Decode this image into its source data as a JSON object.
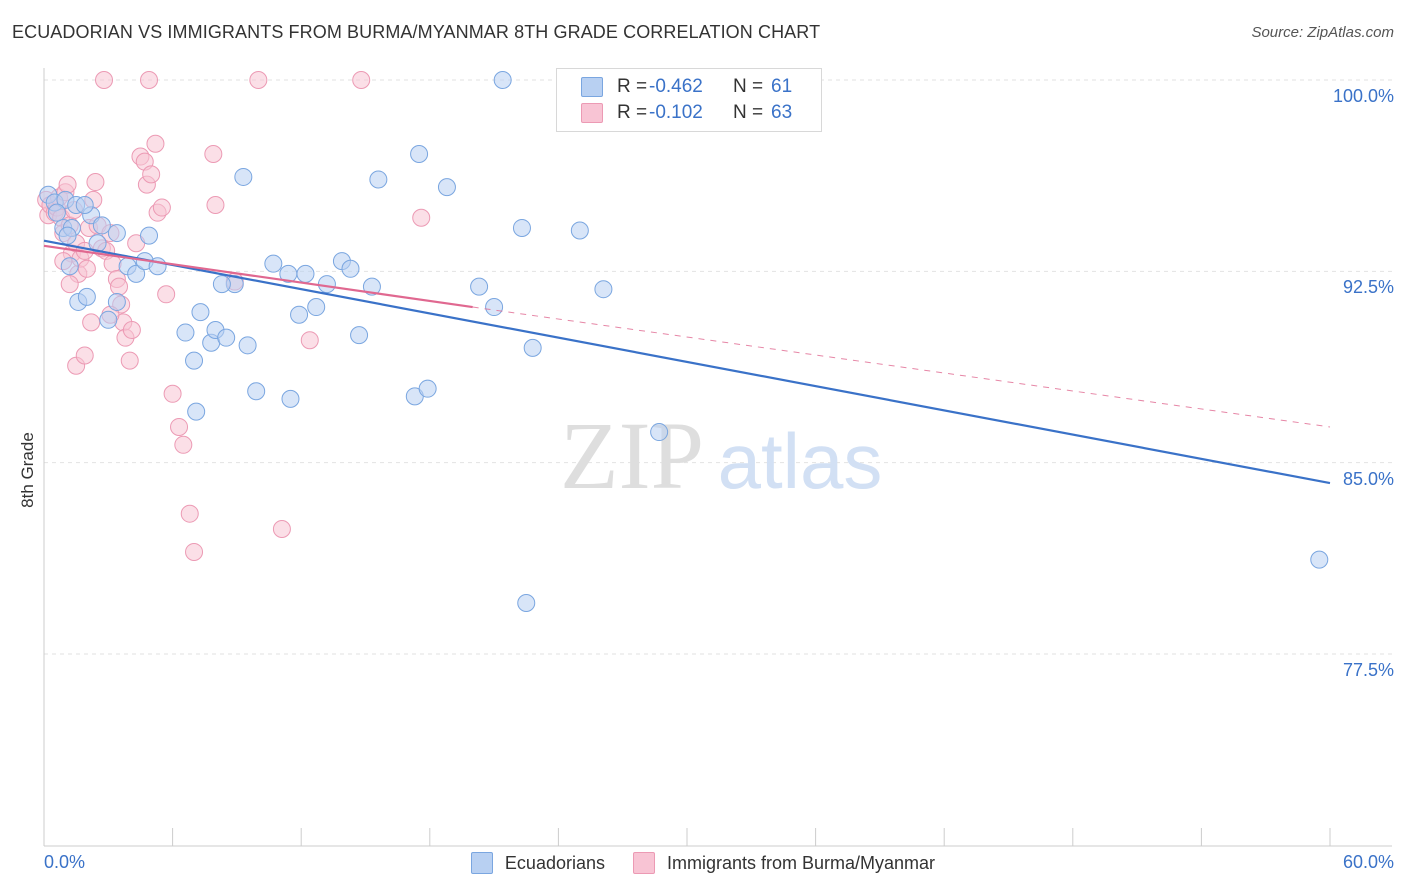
{
  "title": "ECUADORIAN VS IMMIGRANTS FROM BURMA/MYANMAR 8TH GRADE CORRELATION CHART",
  "source": "Source: ZipAtlas.com",
  "watermark": {
    "zip": "ZIP",
    "atlas": "atlas"
  },
  "legend_top": {
    "rows": [
      {
        "r_label": "R =",
        "r_value": "-0.462",
        "n_label": "N =",
        "n_value": "61"
      },
      {
        "r_label": "R =",
        "r_value": "-0.102",
        "n_label": "N =",
        "n_value": "63"
      }
    ]
  },
  "colors": {
    "blue_fill": "#b8d0f2",
    "blue_stroke": "#7aa6e0",
    "blue_line": "#3a72c8",
    "pink_fill": "#f8c4d4",
    "pink_stroke": "#ec9ab4",
    "pink_line": "#e06890",
    "grid": "#e2e2e2",
    "axis_text": "#3a72c8"
  },
  "chart_data": {
    "type": "scatter",
    "title": "ECUADORIAN VS IMMIGRANTS FROM BURMA/MYANMAR 8TH GRADE CORRELATION CHART",
    "xlabel": "",
    "ylabel": "8th Grade",
    "xlim": [
      0,
      60
    ],
    "ylim": [
      70.0,
      101.0
    ],
    "x_tick_labels": [
      "0.0%",
      "60.0%"
    ],
    "y_ticks": [
      100.0,
      92.5,
      85.0,
      77.5
    ],
    "y_tick_labels": [
      "100.0%",
      "92.5%",
      "85.0%",
      "77.5%"
    ],
    "grid": true,
    "legend": "bottom-center",
    "series": [
      {
        "name": "Ecuadorians",
        "r": -0.462,
        "n": 61,
        "trend": {
          "x0": 0,
          "y0": 93.7,
          "x1": 60,
          "y1": 84.2
        },
        "points": [
          [
            0.2,
            95.5
          ],
          [
            0.5,
            95.2
          ],
          [
            1.0,
            95.3
          ],
          [
            1.5,
            95.1
          ],
          [
            0.9,
            94.2
          ],
          [
            1.3,
            94.2
          ],
          [
            1.2,
            92.7
          ],
          [
            2.2,
            94.7
          ],
          [
            2.7,
            94.3
          ],
          [
            2.5,
            93.6
          ],
          [
            3.4,
            94.0
          ],
          [
            3.9,
            92.7
          ],
          [
            4.3,
            92.4
          ],
          [
            4.9,
            93.9
          ],
          [
            4.7,
            92.9
          ],
          [
            5.3,
            92.7
          ],
          [
            1.6,
            91.3
          ],
          [
            2.0,
            91.5
          ],
          [
            3.4,
            91.3
          ],
          [
            3.0,
            90.6
          ],
          [
            6.6,
            90.1
          ],
          [
            7.0,
            89.0
          ],
          [
            7.3,
            90.9
          ],
          [
            7.8,
            89.7
          ],
          [
            8.0,
            90.2
          ],
          [
            8.5,
            89.9
          ],
          [
            8.9,
            92.0
          ],
          [
            9.5,
            89.6
          ],
          [
            9.9,
            87.8
          ],
          [
            10.7,
            92.8
          ],
          [
            11.4,
            92.4
          ],
          [
            11.9,
            90.8
          ],
          [
            11.5,
            87.5
          ],
          [
            12.2,
            92.4
          ],
          [
            12.7,
            91.1
          ],
          [
            13.2,
            92.0
          ],
          [
            13.9,
            92.9
          ],
          [
            14.3,
            92.6
          ],
          [
            14.7,
            90.0
          ],
          [
            15.3,
            91.9
          ],
          [
            15.6,
            96.1
          ],
          [
            17.3,
            87.6
          ],
          [
            17.5,
            97.1
          ],
          [
            17.9,
            87.9
          ],
          [
            18.8,
            95.8
          ],
          [
            20.3,
            91.9
          ],
          [
            21.0,
            91.1
          ],
          [
            21.4,
            100.0
          ],
          [
            22.3,
            94.2
          ],
          [
            22.5,
            79.5
          ],
          [
            22.8,
            89.5
          ],
          [
            25.0,
            94.1
          ],
          [
            26.1,
            91.8
          ],
          [
            9.3,
            96.2
          ],
          [
            7.1,
            87.0
          ],
          [
            28.7,
            86.2
          ],
          [
            59.5,
            81.2
          ],
          [
            1.9,
            95.1
          ],
          [
            0.6,
            94.8
          ],
          [
            1.1,
            93.9
          ],
          [
            8.3,
            92.0
          ]
        ]
      },
      {
        "name": "Immigrants from Burma/Myanmar",
        "r": -0.102,
        "n": 63,
        "trend": {
          "x0": 0,
          "y0": 93.5,
          "x1": 20,
          "y1": 91.1
        },
        "trend_dashed": {
          "x0": 20,
          "y0": 91.1,
          "x1": 60,
          "y1": 86.4
        },
        "points": [
          [
            0.1,
            95.3
          ],
          [
            0.2,
            94.7
          ],
          [
            0.3,
            95.1
          ],
          [
            0.5,
            94.8
          ],
          [
            0.6,
            95.0
          ],
          [
            0.7,
            95.4
          ],
          [
            0.8,
            94.6
          ],
          [
            0.9,
            94.0
          ],
          [
            1.0,
            95.6
          ],
          [
            1.1,
            95.9
          ],
          [
            1.2,
            94.3
          ],
          [
            1.3,
            93.2
          ],
          [
            1.4,
            94.9
          ],
          [
            1.5,
            93.6
          ],
          [
            1.6,
            92.4
          ],
          [
            1.7,
            93.0
          ],
          [
            1.2,
            92.0
          ],
          [
            1.9,
            93.3
          ],
          [
            2.0,
            92.6
          ],
          [
            2.1,
            94.2
          ],
          [
            2.3,
            95.3
          ],
          [
            2.4,
            96.0
          ],
          [
            2.5,
            94.3
          ],
          [
            2.7,
            93.4
          ],
          [
            2.9,
            93.3
          ],
          [
            3.1,
            94.0
          ],
          [
            3.2,
            92.8
          ],
          [
            3.4,
            92.2
          ],
          [
            3.5,
            91.9
          ],
          [
            3.6,
            91.2
          ],
          [
            3.7,
            90.5
          ],
          [
            3.8,
            89.9
          ],
          [
            4.0,
            89.0
          ],
          [
            4.1,
            90.2
          ],
          [
            4.3,
            93.6
          ],
          [
            4.5,
            97.0
          ],
          [
            4.7,
            96.8
          ],
          [
            4.8,
            95.9
          ],
          [
            5.0,
            96.3
          ],
          [
            5.2,
            97.5
          ],
          [
            5.3,
            94.8
          ],
          [
            5.5,
            95.0
          ],
          [
            5.7,
            91.6
          ],
          [
            6.0,
            87.7
          ],
          [
            6.3,
            86.4
          ],
          [
            6.5,
            85.7
          ],
          [
            6.8,
            83.0
          ],
          [
            7.0,
            81.5
          ],
          [
            7.9,
            97.1
          ],
          [
            8.0,
            95.1
          ],
          [
            8.9,
            92.1
          ],
          [
            10.0,
            100.0
          ],
          [
            11.1,
            82.4
          ],
          [
            12.4,
            89.8
          ],
          [
            14.8,
            100.0
          ],
          [
            17.6,
            94.6
          ],
          [
            2.8,
            100.0
          ],
          [
            4.9,
            100.0
          ],
          [
            1.5,
            88.8
          ],
          [
            1.9,
            89.2
          ],
          [
            2.2,
            90.5
          ],
          [
            3.1,
            90.8
          ],
          [
            0.9,
            92.9
          ]
        ]
      }
    ]
  },
  "legend_bottom": [
    {
      "label": "Ecuadorians"
    },
    {
      "label": "Immigrants from Burma/Myanmar"
    }
  ]
}
